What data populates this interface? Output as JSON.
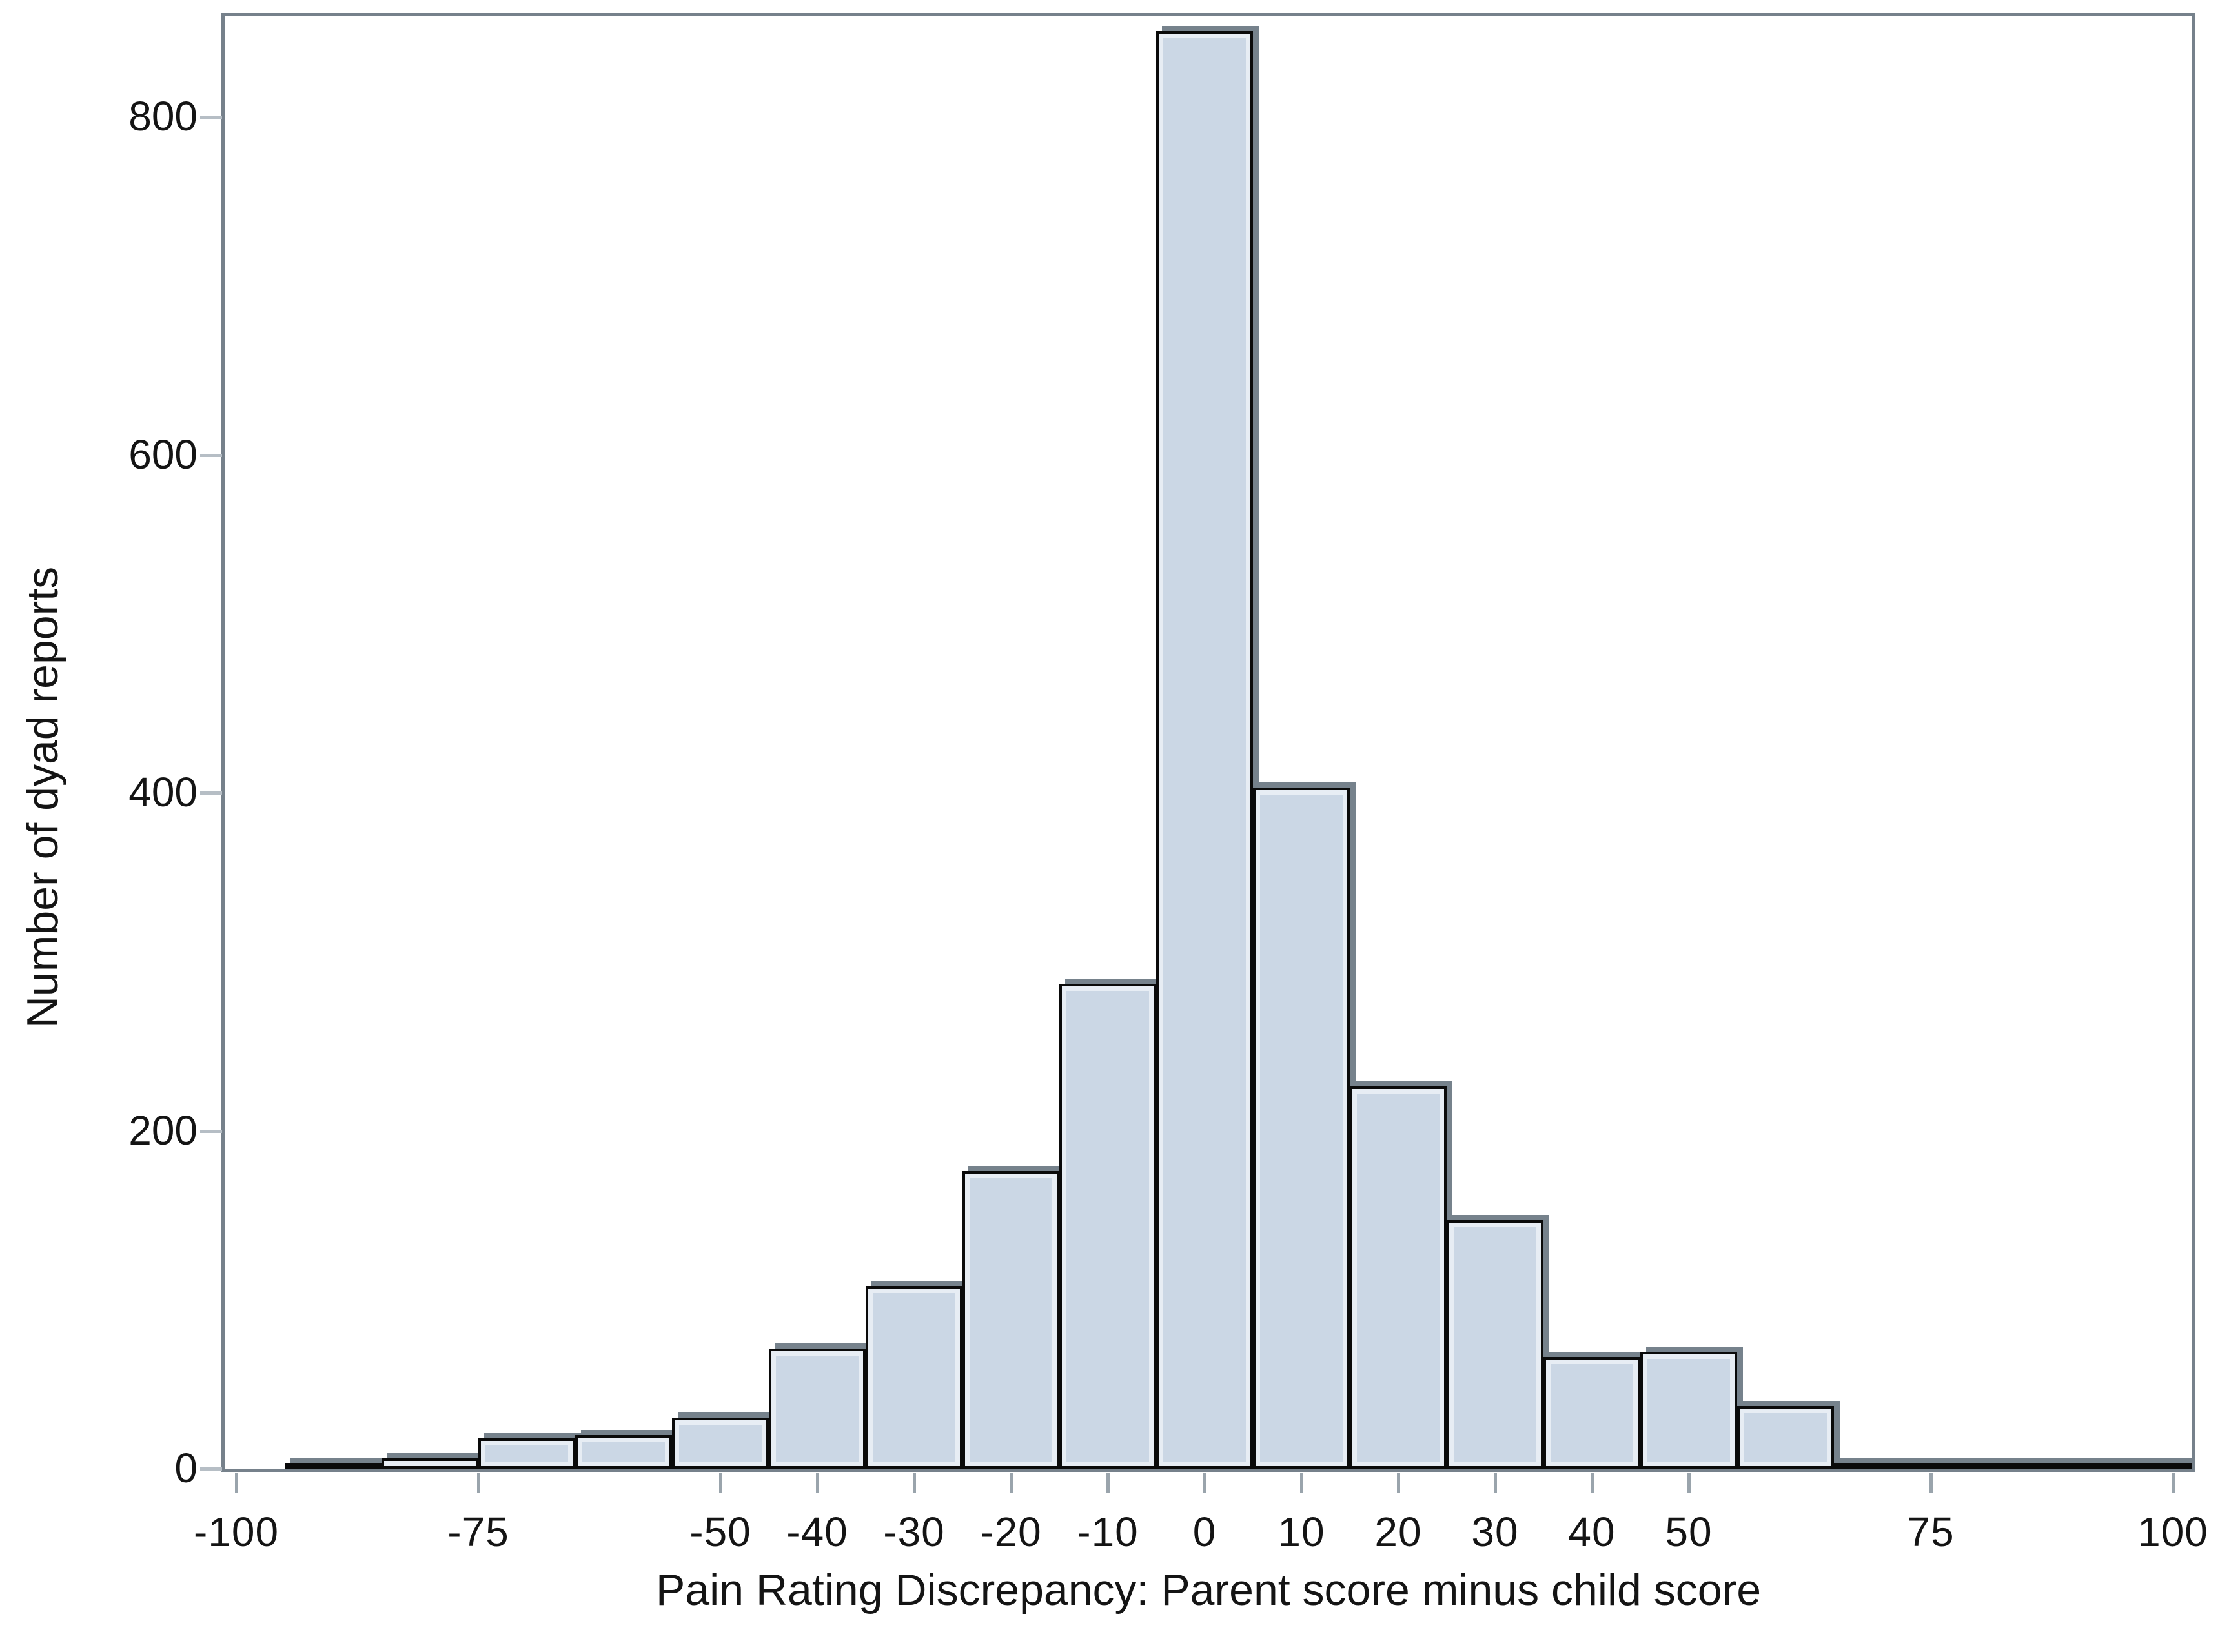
{
  "chart_data": {
    "type": "bar",
    "subtype": "histogram",
    "title": "",
    "xlabel": "Pain Rating Discrepancy: Parent score minus child score",
    "ylabel": "Number of dyad reports",
    "bin_width": 10,
    "bin_centers": [
      -90,
      -80,
      -70,
      -60,
      -50,
      -40,
      -30,
      -20,
      -10,
      0,
      10,
      20,
      30,
      40,
      50,
      60,
      70,
      80,
      90,
      100
    ],
    "values": [
      3,
      6,
      18,
      20,
      30,
      71,
      108,
      176,
      287,
      851,
      403,
      226,
      147,
      66,
      69,
      37,
      3,
      2,
      2,
      1
    ],
    "x_tick_values": [
      -100,
      -75,
      -50,
      -40,
      -30,
      -20,
      -10,
      0,
      10,
      20,
      30,
      40,
      50,
      75,
      100
    ],
    "x_tick_labels": [
      "-100",
      "-75",
      "-50",
      "-40",
      "-30",
      "-20",
      "-10",
      "0",
      "10",
      "20",
      "30",
      "40",
      "50",
      "75",
      "100"
    ],
    "y_tick_values": [
      0,
      200,
      400,
      600,
      800
    ],
    "y_tick_labels": [
      "0",
      "200",
      "400",
      "600",
      "800"
    ],
    "xlim": [
      -101.5,
      102
    ],
    "ylim": [
      0,
      861
    ],
    "grid": false,
    "legend": "none",
    "colors": {
      "bar_fill": "#cbd7e5",
      "bar_border": "#0a0a0a",
      "bar_inner_highlight": "#e7edf4",
      "bar_shadow": "#76828c",
      "frame": "#76818b",
      "tick": "#9aa4ac",
      "text": "#141414",
      "background": "#ffffff"
    }
  }
}
